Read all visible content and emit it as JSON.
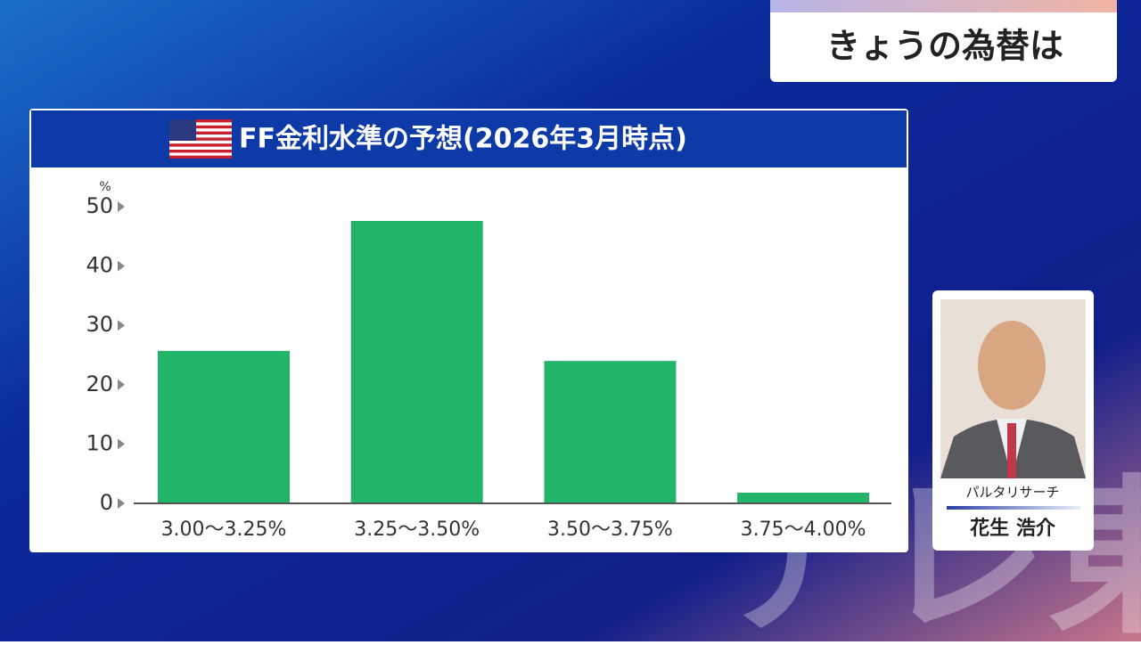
{
  "header": {
    "title": "きょうの為替は"
  },
  "chart_data": {
    "type": "bar",
    "title": "FF金利水準の予想(2026年3月時点)",
    "unit_label": "%",
    "categories": [
      "3.00〜3.25%",
      "3.25〜3.50%",
      "3.50〜3.75%",
      "3.75〜4.00%"
    ],
    "values": [
      25.7,
      47.6,
      24.0,
      1.8
    ],
    "color": "#22b56a",
    "ylim": [
      0,
      50
    ],
    "yticks": [
      0,
      10,
      20,
      30,
      40,
      50
    ]
  },
  "presenter": {
    "affiliation": "パルタリサーチ",
    "name": "花生 浩介"
  }
}
